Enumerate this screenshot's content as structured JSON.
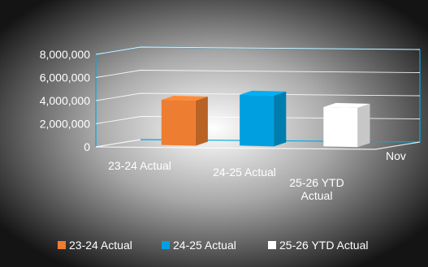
{
  "chart_data": {
    "type": "bar",
    "style": "3d-column",
    "title": "",
    "xlabel": "",
    "ylabel": "",
    "ylim": [
      0,
      8000000
    ],
    "grid": true,
    "legend_position": "bottom",
    "categories": [
      "23-24 Actual",
      "24-25 Actual",
      "25-26 YTD Actual"
    ],
    "category_label_lines": [
      [
        "23-24 Actual"
      ],
      [
        "24-25 Actual"
      ],
      [
        "25-26 YTD",
        "Actual"
      ]
    ],
    "depth_axis_label": "Nov",
    "y_ticks": [
      0,
      2000000,
      4000000,
      6000000,
      8000000
    ],
    "y_tick_labels": [
      "0",
      "2,000,000",
      "4,000,000",
      "6,000,000",
      "8,000,000"
    ],
    "series": [
      {
        "category": "23-24 Actual",
        "value": 3900000,
        "color": "#ED7D31"
      },
      {
        "category": "24-25 Actual",
        "value": 4400000,
        "color": "#00A0E0"
      },
      {
        "category": "25-26 YTD Actual",
        "value": 3400000,
        "color": "#FFFFFF"
      }
    ],
    "legend": [
      "23-24 Actual",
      "24-25 Actual",
      "25-26 YTD Actual"
    ],
    "colors": {
      "background_inner": "#ffffff",
      "background_outer": "#141414",
      "frame": "#00a8e6",
      "gridline": "#ffffff",
      "text": "#ffffff"
    }
  }
}
